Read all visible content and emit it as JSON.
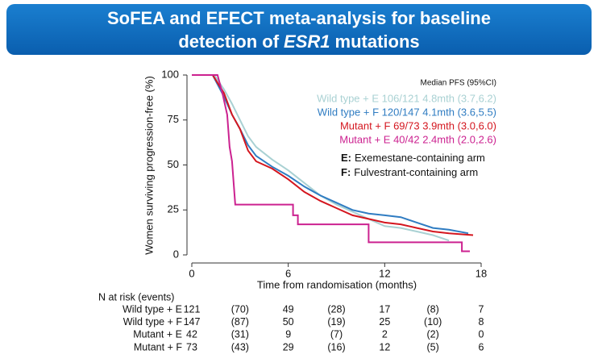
{
  "chart_data": {
    "type": "line",
    "title_lines": [
      [
        "SoFEA and EFECT meta-analysis for baseline"
      ],
      [
        "detection of",
        "ESR1",
        "mutations"
      ]
    ],
    "title_italic": [
      [
        false
      ],
      [
        false,
        true,
        false
      ]
    ],
    "xlabel": "Time from randomisation (months)",
    "ylabel": "Women surviving progression-free (%)",
    "xlim": [
      0,
      18
    ],
    "ylim": [
      0,
      100
    ],
    "xticks": [
      0,
      6,
      12,
      18
    ],
    "yticks": [
      0,
      25,
      50,
      75,
      100
    ],
    "legend_title": "Median PFS (95%CI)",
    "series": [
      {
        "name": "Wild type + E 106/121 4.8mth (3.7,6.2)",
        "color": "#a9d1d3",
        "x": [
          0,
          1.4,
          2,
          2.5,
          3,
          3.5,
          4,
          5,
          6,
          7,
          8,
          9,
          10,
          11,
          12,
          13,
          14,
          15,
          16
        ],
        "values": [
          100,
          100,
          92,
          84,
          75,
          66,
          60,
          53,
          47,
          40,
          33,
          28,
          24,
          20,
          16,
          15,
          13,
          11,
          8
        ]
      },
      {
        "name": "Wild type + F 120/147 4.1mth (3.6,5.5)",
        "color": "#2f7cc2",
        "x": [
          0,
          1.3,
          2,
          2.5,
          3,
          3.5,
          4,
          5,
          6,
          7,
          8,
          9,
          10,
          11,
          12,
          13,
          14,
          15,
          16,
          17.2
        ],
        "values": [
          100,
          100,
          88,
          78,
          70,
          61,
          55,
          49,
          44,
          38,
          33,
          29,
          25,
          23,
          22,
          21,
          18,
          15,
          14,
          12
        ]
      },
      {
        "name": "Mutant + F 69/73 3.9mth (3.0,6.0)",
        "color": "#d4161f",
        "x": [
          0,
          1.3,
          2,
          2.5,
          3,
          3.5,
          4,
          5,
          6,
          7,
          8,
          9,
          10,
          11,
          12,
          13,
          14,
          15,
          16,
          17.5
        ],
        "values": [
          100,
          100,
          90,
          78,
          70,
          58,
          52,
          48,
          42,
          35,
          30,
          26,
          22,
          20,
          18,
          17,
          15,
          13,
          12,
          11
        ]
      },
      {
        "name": "Mutant + E 40/42 2.4mth (2.0,2.6)",
        "color": "#cc2290",
        "x": [
          0,
          1.6,
          1.9,
          2.2,
          2.35,
          2.5,
          2.6,
          2.7,
          6.3,
          6.3,
          6.6,
          6.6,
          11,
          11,
          16.8,
          16.8,
          17.3
        ],
        "values": [
          100,
          100,
          90,
          78,
          60,
          52,
          40,
          28,
          28,
          22,
          22,
          17,
          17,
          7,
          7,
          2,
          2
        ]
      }
    ],
    "annotations": [
      {
        "key": "E:",
        "text": "Exemestane-containing arm"
      },
      {
        "key": "F:",
        "text": "Fulvestrant-containing arm"
      }
    ],
    "risk_table": {
      "title": "N at risk (events)",
      "rows": [
        {
          "label": "Wild type + E",
          "cells": [
            "121",
            "(70)",
            "49",
            "(28)",
            "17",
            "(8)",
            "7"
          ]
        },
        {
          "label": "Wild type + F",
          "cells": [
            "147",
            "(87)",
            "50",
            "(19)",
            "25",
            "(10)",
            "8"
          ]
        },
        {
          "label": "Mutant + E",
          "cells": [
            "42",
            "(31)",
            "9",
            "(7)",
            "2",
            "(2)",
            "0"
          ]
        },
        {
          "label": "Mutant + F",
          "cells": [
            "73",
            "(43)",
            "29",
            "(16)",
            "12",
            "(5)",
            "6"
          ]
        }
      ]
    }
  }
}
